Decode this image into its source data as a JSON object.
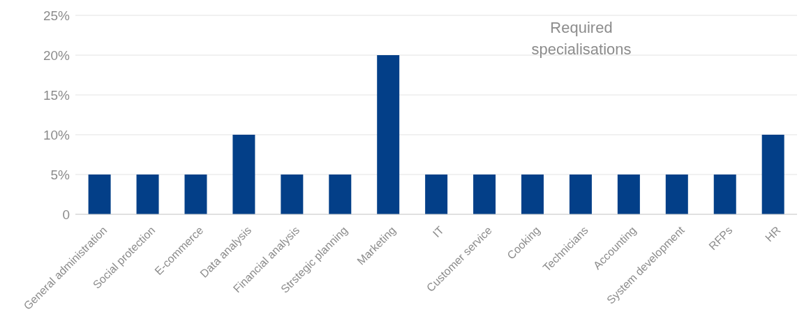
{
  "chart_data": {
    "type": "bar",
    "title": "Required specialisations",
    "categories": [
      "General administration",
      "Social protection",
      "E-commerce",
      "Data analysis",
      "Financial analysis",
      "Strstegic planning",
      "Marketing",
      "IT",
      "Customer service",
      "Cooking",
      "Technicians",
      "Accounting",
      "System development",
      "RFPs",
      "HR"
    ],
    "values": [
      5,
      5,
      5,
      10,
      5,
      5,
      20,
      5,
      5,
      5,
      5,
      5,
      5,
      5,
      10
    ],
    "color": "#033f88",
    "ylim": [
      0,
      25
    ],
    "yticks": [
      0,
      {
        "value": 5,
        "label": "5%"
      },
      {
        "value": 10,
        "label": "10%"
      },
      {
        "value": 15,
        "label": "15%"
      },
      {
        "value": 20,
        "label": "20%"
      },
      {
        "value": 25,
        "label": "25%"
      }
    ],
    "grid": "y"
  }
}
